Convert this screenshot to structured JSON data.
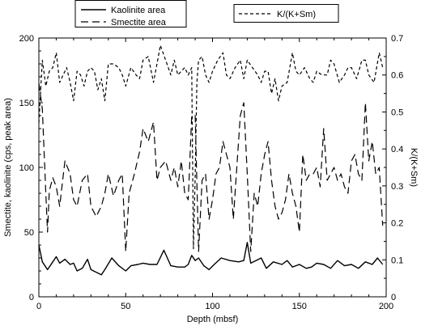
{
  "chart_data": {
    "type": "line",
    "title": "",
    "xlabel": "Depth (mbsf)",
    "ylabel": "Smectite, kaolinite (cps, peak area)",
    "y2label": "K/(K+Sm)",
    "xlim": [
      0,
      200
    ],
    "ylim": [
      0,
      200
    ],
    "y2lim": [
      0,
      0.7
    ],
    "x_ticks": [
      0,
      50,
      100,
      150,
      200
    ],
    "y_ticks": [
      0,
      50,
      100,
      150,
      200
    ],
    "y2_ticks": [
      0,
      0.1,
      0.2,
      0.3,
      0.4,
      0.5,
      0.6,
      0.7
    ],
    "grid": false,
    "legend": [
      {
        "series": "Kaolinite area",
        "placement": "top-left"
      },
      {
        "series": "Smectite area",
        "placement": "top-left"
      },
      {
        "series": "K/(K+Sm)",
        "placement": "top-right"
      }
    ],
    "series": [
      {
        "name": "Kaolinite area",
        "axis": "left",
        "style": "solid",
        "color": "#000000",
        "x": [
          0,
          2,
          5,
          8,
          10,
          12,
          15,
          18,
          20,
          22,
          25,
          28,
          30,
          33,
          36,
          38,
          42,
          46,
          50,
          53,
          57,
          60,
          64,
          68,
          72,
          76,
          80,
          84,
          86,
          88,
          90,
          92,
          95,
          98,
          101,
          105,
          110,
          115,
          118,
          120,
          122,
          125,
          128,
          131,
          135,
          140,
          143,
          146,
          150,
          154,
          157,
          160,
          164,
          168,
          172,
          176,
          180,
          184,
          188,
          192,
          195,
          198
        ],
        "y": [
          40,
          27,
          21,
          27,
          31,
          26,
          29,
          25,
          26,
          20,
          22,
          29,
          21,
          19,
          17,
          21,
          30,
          24,
          20,
          24,
          25,
          26,
          25,
          25,
          36,
          24,
          23,
          23,
          25,
          32,
          28,
          30,
          24,
          21,
          25,
          30,
          28,
          27,
          28,
          42,
          26,
          28,
          30,
          22,
          27,
          25,
          28,
          23,
          25,
          22,
          23,
          26,
          25,
          22,
          28,
          24,
          25,
          22,
          27,
          25,
          30,
          25
        ]
      },
      {
        "name": "Smectite area",
        "axis": "left",
        "style": "dashed",
        "color": "#000000",
        "x": [
          0,
          2,
          4,
          5,
          6,
          8,
          10,
          12,
          15,
          18,
          20,
          22,
          25,
          28,
          30,
          33,
          36,
          38,
          40,
          43,
          46,
          48,
          50,
          52,
          55,
          58,
          60,
          63,
          66,
          68,
          70,
          73,
          76,
          78,
          80,
          82,
          84,
          86,
          88,
          90,
          92,
          94,
          96,
          98,
          100,
          102,
          104,
          106,
          108,
          110,
          112,
          114,
          116,
          118,
          120,
          122,
          124,
          126,
          128,
          130,
          132,
          134,
          136,
          138,
          140,
          142,
          144,
          146,
          148,
          150,
          152,
          154,
          156,
          158,
          160,
          162,
          164,
          166,
          168,
          170,
          172,
          174,
          176,
          178,
          180,
          182,
          184,
          186,
          188,
          190,
          192,
          194,
          196,
          198
        ],
        "y": [
          165,
          145,
          80,
          50,
          82,
          92,
          85,
          70,
          105,
          95,
          75,
          70,
          90,
          95,
          70,
          62,
          70,
          80,
          95,
          78,
          90,
          95,
          35,
          80,
          95,
          112,
          130,
          120,
          135,
          90,
          100,
          105,
          90,
          100,
          85,
          105,
          80,
          75,
          140,
          140,
          35,
          90,
          95,
          60,
          75,
          95,
          100,
          120,
          110,
          100,
          60,
          100,
          140,
          150,
          95,
          35,
          80,
          70,
          95,
          110,
          120,
          90,
          70,
          60,
          65,
          75,
          95,
          80,
          70,
          50,
          110,
          90,
          95,
          95,
          100,
          85,
          130,
          90,
          95,
          100,
          90,
          95,
          85,
          80,
          105,
          110,
          95,
          90,
          150,
          105,
          120,
          95,
          100,
          55
        ]
      },
      {
        "name": "K/(K+Sm)",
        "axis": "right",
        "style": "dashed",
        "color": "#000000",
        "x": [
          0,
          2,
          4,
          6,
          8,
          10,
          12,
          14,
          16,
          18,
          20,
          22,
          24,
          26,
          28,
          30,
          32,
          34,
          36,
          38,
          40,
          43,
          46,
          48,
          50,
          53,
          56,
          58,
          60,
          63,
          66,
          68,
          70,
          73,
          76,
          78,
          80,
          82,
          84,
          86,
          88,
          89,
          90,
          91,
          92,
          94,
          96,
          98,
          100,
          103,
          106,
          108,
          110,
          113,
          116,
          118,
          120,
          123,
          126,
          128,
          130,
          132,
          134,
          136,
          138,
          140,
          143,
          146,
          148,
          150,
          153,
          156,
          158,
          160,
          163,
          166,
          168,
          170,
          173,
          176,
          178,
          180,
          183,
          186,
          188,
          190,
          193,
          196,
          198
        ],
        "y": [
          0.47,
          0.64,
          0.57,
          0.61,
          0.62,
          0.66,
          0.58,
          0.6,
          0.62,
          0.58,
          0.53,
          0.61,
          0.6,
          0.57,
          0.61,
          0.62,
          0.61,
          0.56,
          0.59,
          0.53,
          0.63,
          0.63,
          0.62,
          0.6,
          0.57,
          0.62,
          0.6,
          0.59,
          0.64,
          0.65,
          0.58,
          0.63,
          0.68,
          0.64,
          0.6,
          0.64,
          0.6,
          0.61,
          0.62,
          0.6,
          0.62,
          0.13,
          0.33,
          0.58,
          0.64,
          0.65,
          0.6,
          0.58,
          0.61,
          0.64,
          0.66,
          0.6,
          0.59,
          0.62,
          0.64,
          0.59,
          0.64,
          0.62,
          0.6,
          0.58,
          0.61,
          0.61,
          0.55,
          0.59,
          0.53,
          0.57,
          0.58,
          0.66,
          0.61,
          0.6,
          0.62,
          0.59,
          0.58,
          0.61,
          0.6,
          0.6,
          0.64,
          0.63,
          0.58,
          0.6,
          0.62,
          0.62,
          0.59,
          0.64,
          0.64,
          0.6,
          0.58,
          0.66,
          0.62
        ]
      }
    ]
  }
}
